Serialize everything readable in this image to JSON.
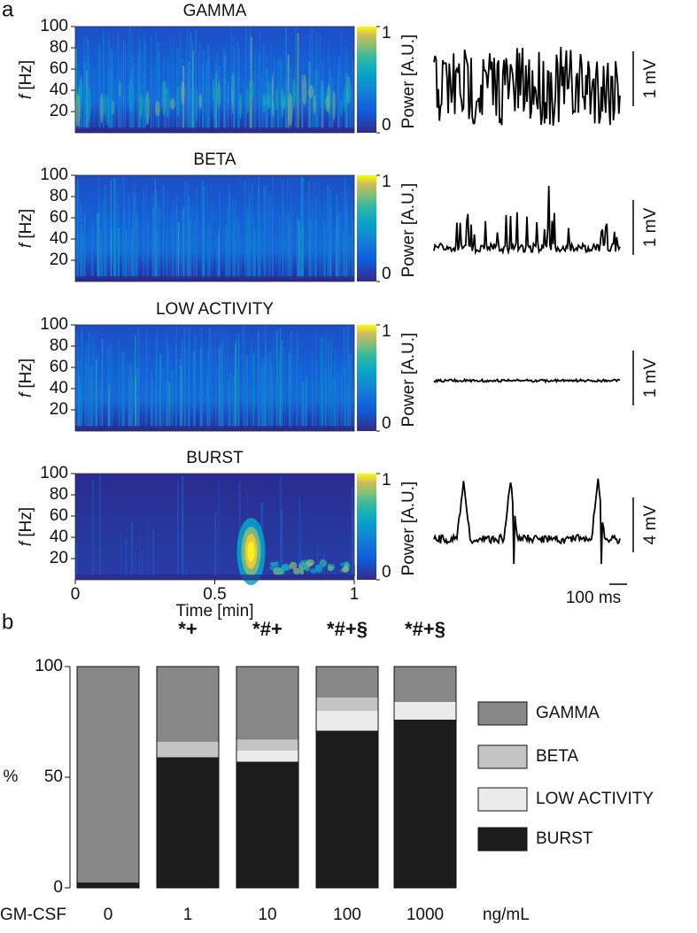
{
  "panel_a": {
    "label": "a",
    "spectrograms": [
      {
        "title": "GAMMA",
        "scale_bar": "1 mV"
      },
      {
        "title": "BETA",
        "scale_bar": "1 mV"
      },
      {
        "title": "LOW ACTIVITY",
        "scale_bar": "1 mV"
      },
      {
        "title": "BURST",
        "scale_bar": "4 mV"
      }
    ],
    "y_label_symbol": "f",
    "y_label_unit": "[Hz]",
    "ylim": [
      0,
      100
    ],
    "yticks": [
      20,
      40,
      60,
      80,
      100
    ],
    "colorbar_label": "Power [A.U.]",
    "colorbar_lim": [
      0,
      1
    ],
    "colorbar_ticks": [
      0,
      1
    ],
    "x_label": "Time [min]",
    "xlim": [
      0,
      1
    ],
    "xticks": [
      0,
      0.5,
      1
    ],
    "time_scale_bar": "100 ms"
  },
  "chart_data": {
    "type": "bar",
    "stacked": true,
    "label": "b",
    "categories": [
      "0",
      "1",
      "10",
      "100",
      "1000"
    ],
    "x_label": "GM-CSF",
    "x_unit": "ng/mL",
    "y_label": "%",
    "ylim": [
      0,
      100
    ],
    "yticks": [
      0,
      50,
      100
    ],
    "annotations": [
      null,
      "*+",
      "*#+",
      "*#+§",
      "*#+§"
    ],
    "series": [
      {
        "name": "GAMMA",
        "color": "#878787",
        "values": [
          97.6,
          34,
          33,
          14,
          16
        ]
      },
      {
        "name": "BETA",
        "color": "#c4c4c4",
        "values": [
          0,
          7,
          5,
          6,
          0
        ]
      },
      {
        "name": "LOW ACTIVITY",
        "color": "#ebebeb",
        "values": [
          0,
          0,
          5,
          9,
          8
        ]
      },
      {
        "name": "BURST",
        "color": "#1c1c1c",
        "values": [
          2.4,
          59,
          57,
          71,
          76
        ]
      }
    ]
  }
}
